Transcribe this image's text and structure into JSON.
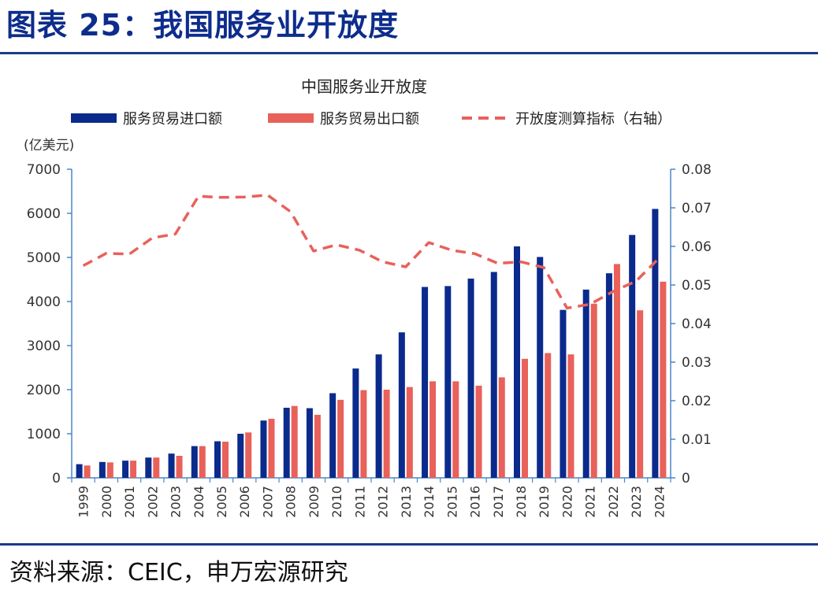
{
  "header": {
    "title": "图表 25：我国服务业开放度"
  },
  "footer": {
    "source": "资料来源：CEIC，申万宏源研究"
  },
  "colors": {
    "import": "#0a2a8c",
    "export": "#e8615a",
    "openness": "#e8615a",
    "axis": "#4a86c5",
    "rule": "#1b3a8f"
  },
  "chart_data": {
    "type": "bar",
    "title": "中国服务业开放度",
    "y_left_unit": "(亿美元)",
    "y_left": {
      "range": [
        0,
        7000
      ],
      "ticks": [
        "0",
        "1000",
        "2000",
        "3000",
        "4000",
        "5000",
        "6000",
        "7000"
      ]
    },
    "y_right": {
      "range": [
        0,
        0.08
      ],
      "ticks": [
        "0",
        "0.01",
        "0.02",
        "0.03",
        "0.04",
        "0.05",
        "0.06",
        "0.07",
        "0.08"
      ]
    },
    "categories": [
      "1999",
      "2000",
      "2001",
      "2002",
      "2003",
      "2004",
      "2005",
      "2006",
      "2007",
      "2008",
      "2009",
      "2010",
      "2011",
      "2012",
      "2013",
      "2014",
      "2015",
      "2016",
      "2017",
      "2018",
      "2019",
      "2020",
      "2021",
      "2022",
      "2023",
      "2024"
    ],
    "series": [
      {
        "name": "服务贸易进口额",
        "type": "bar",
        "axis": "left",
        "values": [
          310,
          360,
          390,
          460,
          550,
          720,
          830,
          1000,
          1300,
          1590,
          1580,
          1920,
          2480,
          2800,
          3300,
          4330,
          4350,
          4520,
          4670,
          5250,
          5010,
          3810,
          4270,
          4640,
          5510,
          6100
        ]
      },
      {
        "name": "服务贸易出口额",
        "type": "bar",
        "axis": "left",
        "values": [
          280,
          350,
          390,
          460,
          500,
          720,
          820,
          1030,
          1340,
          1630,
          1430,
          1770,
          1990,
          2000,
          2060,
          2190,
          2190,
          2090,
          2280,
          2700,
          2830,
          2800,
          3950,
          4850,
          3800,
          4450
        ]
      },
      {
        "name": "开放度测算指标（右轴）",
        "type": "line",
        "axis": "right",
        "style": "dashed",
        "values": [
          0.055,
          0.0582,
          0.058,
          0.0622,
          0.0632,
          0.073,
          0.0727,
          0.0728,
          0.0733,
          0.069,
          0.0588,
          0.0604,
          0.059,
          0.056,
          0.0547,
          0.061,
          0.059,
          0.0581,
          0.0556,
          0.056,
          0.0545,
          0.044,
          0.045,
          0.0483,
          0.051,
          0.057
        ]
      }
    ],
    "legend_position": "top",
    "grid": false
  }
}
